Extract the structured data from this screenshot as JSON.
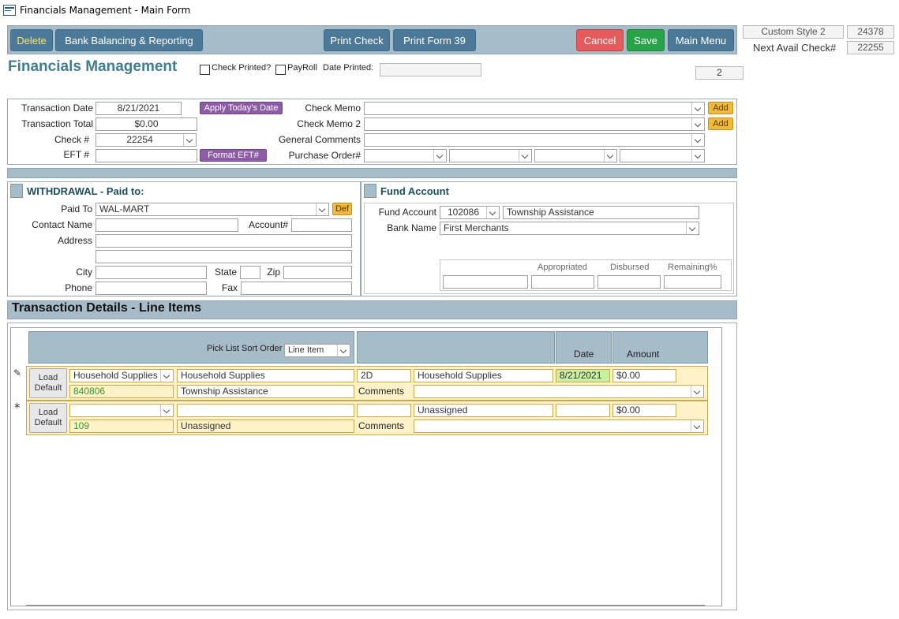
{
  "window": {
    "title": "Financials Management - Main Form"
  },
  "toolbar": {
    "delete_label": "Delete",
    "bank_label": "Bank Balancing & Reporting",
    "print_check_label": "Print Check",
    "print_form_label": "Print Form 39",
    "cancel_label": "Cancel",
    "save_label": "Save",
    "main_menu_label": "Main Menu"
  },
  "side": {
    "style_value": "Custom Style 2",
    "style_number": "24378",
    "next_check_label": "Next Avail Check#",
    "next_check_value": "22255"
  },
  "header": {
    "title": "Financials Management",
    "check_printed_label": "Check Printed?",
    "payroll_label": "PayRoll",
    "date_printed_label": "Date Printed:",
    "date_printed_value": "",
    "record_number": "2"
  },
  "transaction": {
    "date_label": "Transaction Date",
    "date_value": "8/21/2021",
    "apply_today_label": "Apply Today's Date",
    "total_label": "Transaction Total",
    "total_value": "$0.00",
    "check_label": "Check #",
    "check_value": "22254",
    "eft_label": "EFT #",
    "eft_value": "",
    "format_eft_label": "Format EFT#",
    "memo_label": "Check Memo",
    "memo_value": "",
    "memo2_label": "Check Memo 2",
    "memo2_value": "",
    "add_label": "Add",
    "comments_label": "General Comments",
    "comments_value": "",
    "po_label": "Purchase Order#"
  },
  "withdrawal": {
    "heading": "WITHDRAWAL - Paid to:",
    "paid_to_label": "Paid To",
    "paid_to_value": "WAL-MART",
    "def_label": "Def",
    "contact_label": "Contact Name",
    "account_label": "Account#",
    "address_label": "Address",
    "city_label": "City",
    "state_label": "State",
    "zip_label": "Zip",
    "phone_label": "Phone",
    "fax_label": "Fax"
  },
  "fund": {
    "heading": "Fund Account",
    "fund_label": "Fund Account",
    "fund_value": "102086",
    "fund_name": "Township Assistance",
    "bank_label": "Bank Name",
    "bank_value": "First Merchants",
    "appropriated_label": "Appropriated",
    "disbursed_label": "Disbursed",
    "remaining_label": "Remaining%"
  },
  "details": {
    "heading": "Transaction Details - Line Items",
    "sort_label": "Pick List Sort Order",
    "sort_value": "Line Item",
    "date_col": "Date",
    "amount_col": "Amount",
    "load_default_label": "Load Default",
    "comments_label": "Comments",
    "rows": [
      {
        "category": "Household Supplies",
        "description": "Household Supplies",
        "code": "2D",
        "name": "Household Supplies",
        "date": "8/21/2021",
        "amount": "$0.00",
        "account": "840806",
        "fund": "Township Assistance"
      },
      {
        "category": "",
        "description": "",
        "code": "",
        "name": "Unassigned",
        "date": "",
        "amount": "$0.00",
        "account": "109",
        "fund": "Unassigned"
      }
    ]
  }
}
